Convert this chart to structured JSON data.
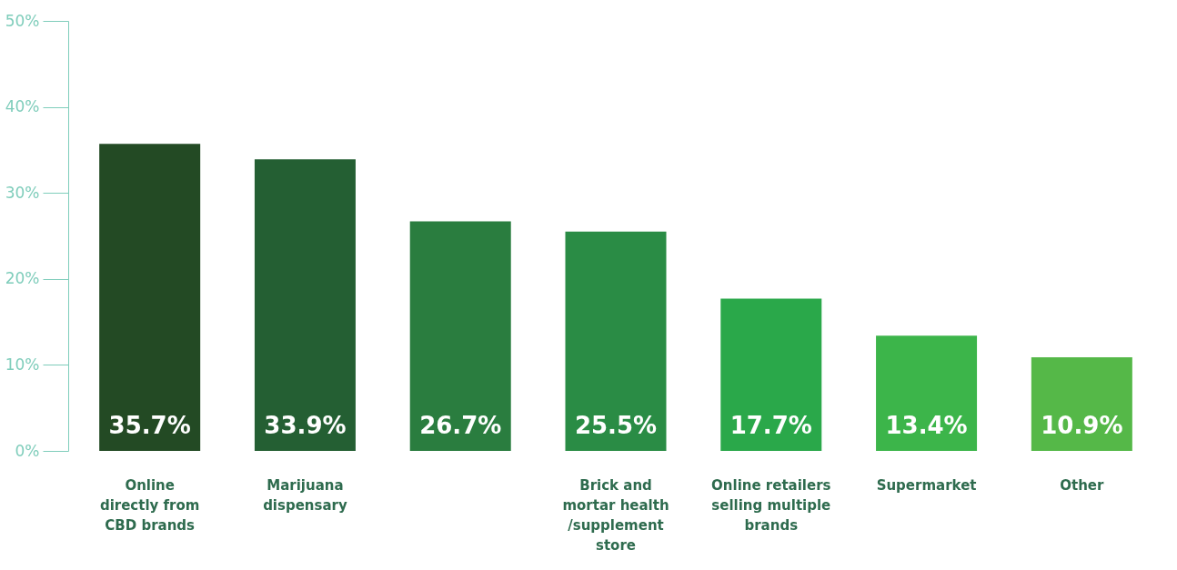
{
  "chart_data": {
    "type": "bar",
    "categories": [
      "Online\ndirectly from\nCBD brands",
      "Marijuana\ndispensary",
      null,
      "Brick and\nmortar health\n/supplement\nstore",
      "Online retailers\nselling multiple\nbrands",
      "Supermarket",
      "Other"
    ],
    "values": [
      35.7,
      33.9,
      26.7,
      25.5,
      17.7,
      13.4,
      10.9
    ],
    "colors": [
      "#234a24",
      "#245f33",
      "#2a7d3f",
      "#2a8c45",
      "#2aa84a",
      "#3cb54a",
      "#55b848"
    ],
    "ylim": [
      0,
      50
    ],
    "yticks": [
      {
        "value": 0,
        "label": "0%"
      },
      {
        "value": 10,
        "label": "10%"
      },
      {
        "value": 20,
        "label": "20%"
      },
      {
        "value": 30,
        "label": "30%"
      },
      {
        "value": 40,
        "label": "40%"
      },
      {
        "value": 50,
        "label": "50%"
      }
    ],
    "value_labels": [
      "35.7%",
      "33.9%",
      "26.7%",
      "25.5%",
      "17.7%",
      "13.4%",
      "10.9%"
    ],
    "grid": false
  }
}
